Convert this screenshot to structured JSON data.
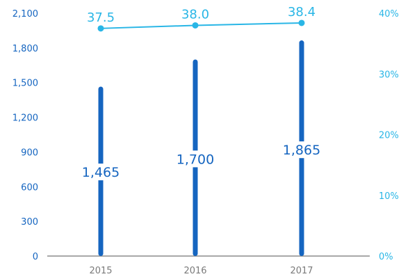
{
  "chart_data": {
    "type": "bar",
    "categories": [
      "2015",
      "2016",
      "2017"
    ],
    "series": [
      {
        "type": "bar",
        "axis": "left",
        "values": [
          1465,
          1700,
          1865
        ],
        "labels": [
          "1,465",
          "1,700",
          "1,865"
        ]
      },
      {
        "type": "line",
        "axis": "right",
        "values": [
          37.5,
          38.0,
          38.4
        ],
        "labels": [
          "37.5",
          "38.0",
          "38.4"
        ]
      }
    ],
    "left_axis": {
      "range": [
        0,
        2100
      ],
      "ticks": [
        0,
        300,
        600,
        900,
        1200,
        1500,
        1800,
        2100
      ],
      "tick_labels": [
        "0",
        "300",
        "600",
        "900",
        "1,200",
        "1,500",
        "1,800",
        "2,100"
      ]
    },
    "right_axis": {
      "range": [
        0,
        40
      ],
      "ticks": [
        0,
        10,
        20,
        30,
        40
      ],
      "tick_labels": [
        "0%",
        "10%",
        "20%",
        "30%",
        "40%"
      ]
    },
    "grid": false,
    "legend": "none",
    "colors": {
      "bar": "#1565c0",
      "line": "#29b6e6",
      "axis": "#8c8c8c",
      "x_tick": "#7a7a7a"
    }
  }
}
